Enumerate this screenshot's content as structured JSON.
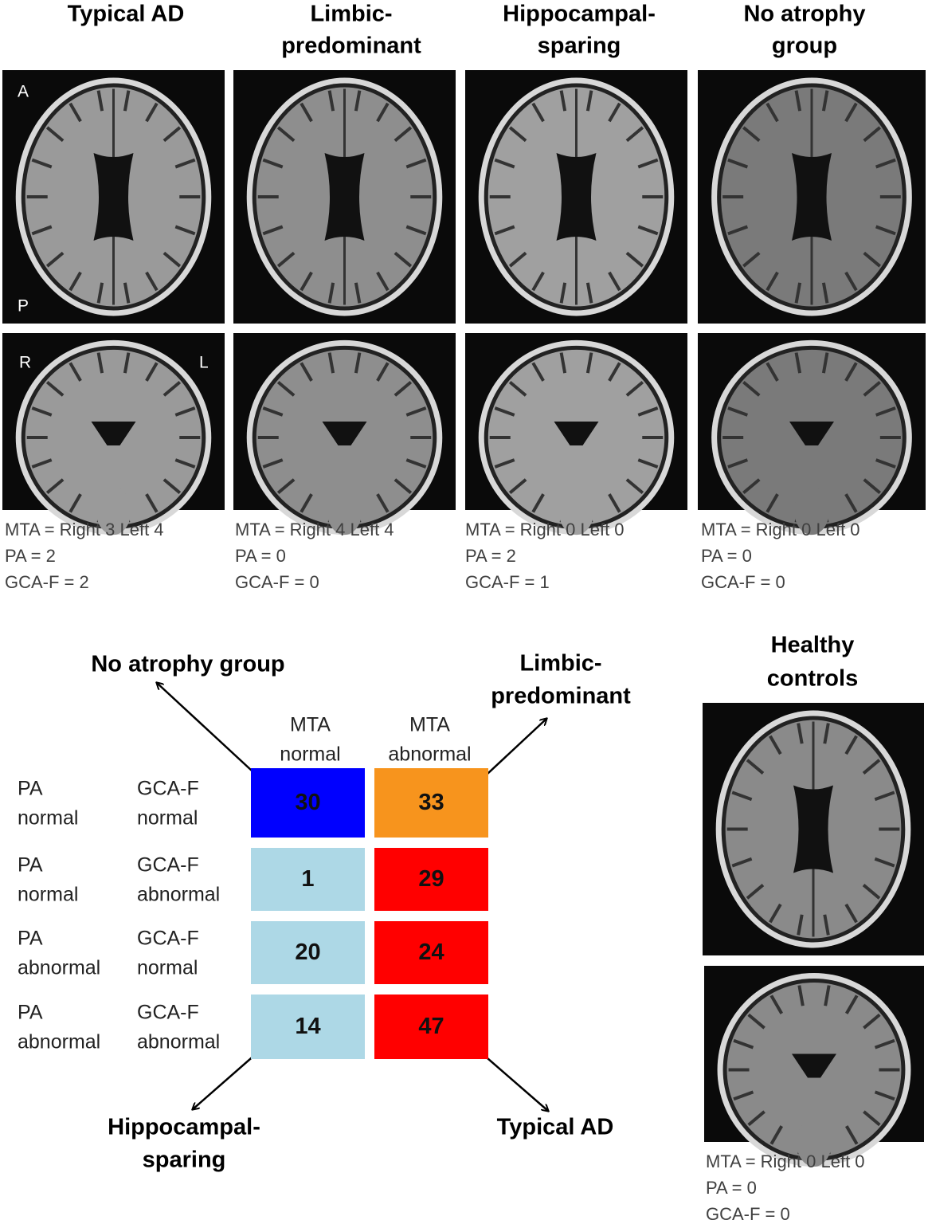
{
  "panels": [
    {
      "title": [
        "Typical AD"
      ],
      "scores": [
        "MTA = Right 3 Left 4",
        "PA = 2",
        "GCA-F = 2"
      ]
    },
    {
      "title": [
        "Limbic-",
        "predominant"
      ],
      "scores": [
        "MTA = Right 4 Left 4",
        "PA = 0",
        "GCA-F = 0"
      ]
    },
    {
      "title": [
        "Hippocampal-",
        "sparing"
      ],
      "scores": [
        "MTA = Right 0 Left 0",
        "PA = 2",
        "GCA-F = 1"
      ]
    },
    {
      "title": [
        "No atrophy",
        "group"
      ],
      "scores": [
        "MTA = Right 0 Left 0",
        "PA = 0",
        "GCA-F = 0"
      ]
    }
  ],
  "orientation_labels": {
    "anterior": "A",
    "posterior": "P",
    "right": "R",
    "left": "L"
  },
  "matrix": {
    "column_headers": [
      [
        "MTA",
        "normal"
      ],
      [
        "MTA",
        "abnormal"
      ]
    ],
    "rows": [
      {
        "labels": [
          [
            "PA",
            "normal"
          ],
          [
            "GCA-F",
            "normal"
          ]
        ],
        "cells": [
          {
            "value": 30,
            "color": "#0000ff"
          },
          {
            "value": 33,
            "color": "#f7941d"
          }
        ]
      },
      {
        "labels": [
          [
            "PA",
            "normal"
          ],
          [
            "GCA-F",
            "abnormal"
          ]
        ],
        "cells": [
          {
            "value": 1,
            "color": "#add8e6"
          },
          {
            "value": 29,
            "color": "#ff0000"
          }
        ]
      },
      {
        "labels": [
          [
            "PA",
            "abnormal"
          ],
          [
            "GCA-F",
            "normal"
          ]
        ],
        "cells": [
          {
            "value": 20,
            "color": "#add8e6"
          },
          {
            "value": 24,
            "color": "#ff0000"
          }
        ]
      },
      {
        "labels": [
          [
            "PA",
            "abnormal"
          ],
          [
            "GCA-F",
            "abnormal"
          ]
        ],
        "cells": [
          {
            "value": 14,
            "color": "#add8e6"
          },
          {
            "value": 47,
            "color": "#ff0000"
          }
        ]
      }
    ],
    "arrow_labels": [
      [
        "No atrophy group"
      ],
      [
        "Limbic-",
        "predominant"
      ],
      [
        "Hippocampal-",
        "sparing"
      ],
      [
        "Typical AD"
      ]
    ]
  },
  "healthy_controls": {
    "title": [
      "Healthy",
      "controls"
    ],
    "scores": [
      "MTA = Right 0 Left 0",
      "PA = 0",
      "GCA-F = 0"
    ]
  }
}
